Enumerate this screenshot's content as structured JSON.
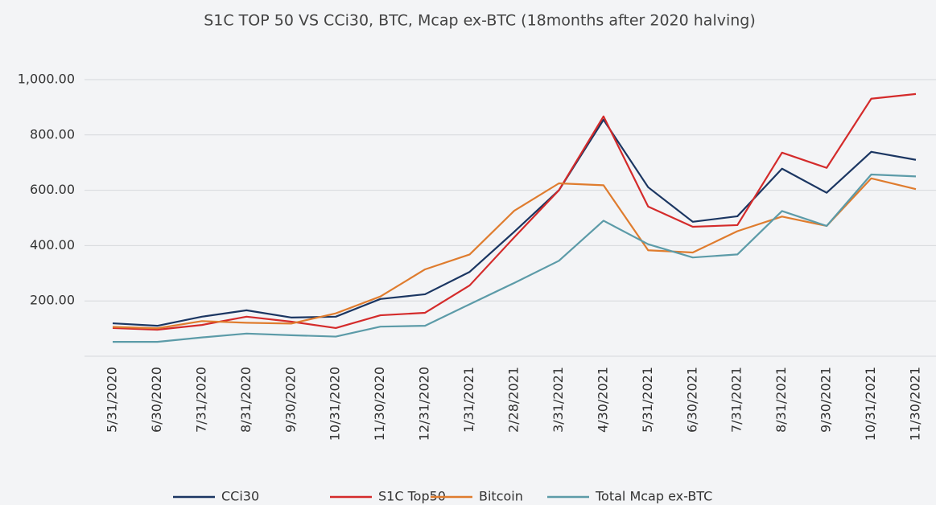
{
  "chart_data": {
    "type": "line",
    "title": "S1C TOP 50 VS CCi30, BTC, Mcap ex-BTC (18months after 2020 halving)",
    "categories": [
      "5/31/2020",
      "6/30/2020",
      "7/31/2020",
      "8/31/2020",
      "9/30/2020",
      "10/31/2020",
      "11/30/2020",
      "12/31/2020",
      "1/31/2021",
      "2/28/2021",
      "3/31/2021",
      "4/30/2021",
      "5/31/2021",
      "6/30/2021",
      "7/31/2021",
      "8/31/2021",
      "9/30/2021",
      "10/31/2021",
      "11/30/2021"
    ],
    "series": [
      {
        "name": "CCi30",
        "color": "#1b3662",
        "values": [
          119,
          110,
          143,
          166,
          140,
          143,
          207,
          224,
          305,
          450,
          600,
          855,
          611,
          486,
          506,
          678,
          591,
          739,
          710
        ]
      },
      {
        "name": "S1C Top50",
        "color": "#d42b2b",
        "values": [
          102,
          96,
          113,
          143,
          125,
          102,
          148,
          157,
          256,
          430,
          600,
          867,
          541,
          468,
          474,
          736,
          681,
          931,
          948
        ]
      },
      {
        "name": "Bitcoin",
        "color": "#df7c2e",
        "values": [
          106,
          101,
          127,
          121,
          118,
          155,
          216,
          314,
          368,
          526,
          625,
          618,
          383,
          375,
          452,
          505,
          471,
          643,
          604
        ]
      },
      {
        "name": "Total Mcap ex-BTC",
        "color": "#5c9ba8",
        "values": [
          52,
          52,
          68,
          82,
          76,
          71,
          107,
          110,
          188,
          265,
          345,
          490,
          405,
          357,
          368,
          525,
          471,
          657,
          650
        ]
      }
    ],
    "ylim": [
      0,
      1000
    ],
    "yticks": [
      {
        "value": 200,
        "label": "200.00"
      },
      {
        "value": 400,
        "label": "400.00"
      },
      {
        "value": 600,
        "label": "600.00"
      },
      {
        "value": 800,
        "label": "800.00"
      },
      {
        "value": 1000,
        "label": "1,000.00"
      }
    ],
    "grid": true,
    "legend": "bottom"
  }
}
